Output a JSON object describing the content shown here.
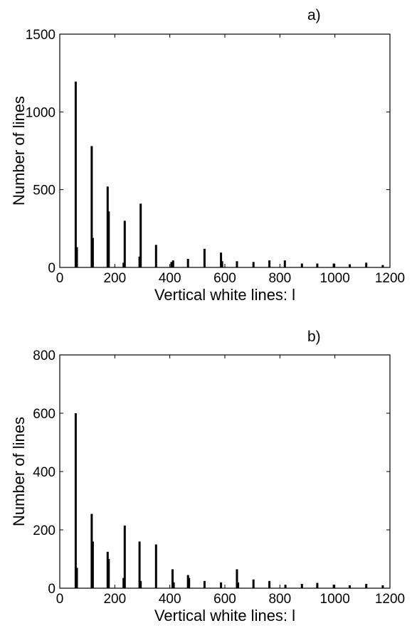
{
  "chart_data": [
    {
      "type": "bar",
      "panel_label": "a)",
      "xlabel": "Vertical white lines: l",
      "ylabel": "Number of lines",
      "xlim": [
        0,
        1200
      ],
      "ylim": [
        0,
        1500
      ],
      "xticks": [
        0,
        200,
        400,
        600,
        800,
        1000,
        1200
      ],
      "yticks": [
        0,
        500,
        1000,
        1500
      ],
      "grid": false,
      "color": "#000000",
      "x": [
        58,
        62,
        116,
        120,
        174,
        178,
        232,
        236,
        290,
        294,
        350,
        406,
        412,
        466,
        526,
        586,
        590,
        644,
        704,
        762,
        818,
        880,
        936,
        996,
        1054,
        1114,
        1174
      ],
      "values": [
        1195,
        130,
        780,
        190,
        520,
        360,
        30,
        300,
        70,
        410,
        145,
        35,
        45,
        55,
        120,
        95,
        40,
        40,
        35,
        45,
        45,
        25,
        25,
        25,
        20,
        30,
        15
      ]
    },
    {
      "type": "bar",
      "panel_label": "b)",
      "xlabel": "Vertical white lines: l",
      "ylabel": "Number of lines",
      "xlim": [
        0,
        1200
      ],
      "ylim": [
        0,
        800
      ],
      "xticks": [
        0,
        200,
        400,
        600,
        800,
        1000,
        1200
      ],
      "yticks": [
        0,
        200,
        400,
        600,
        800
      ],
      "grid": false,
      "color": "#000000",
      "x": [
        58,
        62,
        116,
        120,
        174,
        178,
        232,
        236,
        290,
        294,
        350,
        410,
        414,
        466,
        470,
        526,
        586,
        644,
        648,
        704,
        762,
        820,
        880,
        936,
        996,
        1054,
        1114,
        1174
      ],
      "values": [
        600,
        70,
        255,
        160,
        125,
        100,
        35,
        215,
        160,
        25,
        150,
        65,
        20,
        45,
        35,
        25,
        20,
        65,
        20,
        30,
        25,
        12,
        15,
        18,
        12,
        10,
        15,
        10
      ]
    }
  ]
}
